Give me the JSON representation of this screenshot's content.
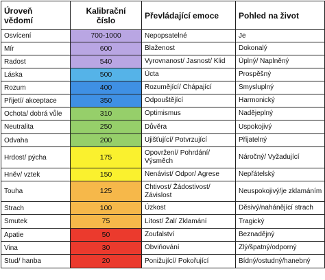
{
  "header": {
    "col1": [
      "Úroveň",
      "vědomí"
    ],
    "col2": [
      "Kalibrační",
      "číslo"
    ],
    "col3": "Převládající emoce",
    "col4": "Pohled na život"
  },
  "colors": {
    "violet": "#b9a6e3",
    "light_blue": "#55b3e8",
    "blue": "#3f90e4",
    "green": "#96cf6a",
    "yellow": "#faf12e",
    "orange": "#f6b84a",
    "red": "#eb3a2d",
    "text": "#111111",
    "border": "#222222"
  },
  "rows": [
    {
      "level": "Osvícení",
      "calib": "700-1000",
      "emotion": "Nepopsatelné",
      "view": "Je",
      "color": "#b9a6e3"
    },
    {
      "level": "Mír",
      "calib": "600",
      "emotion": "Blaženost",
      "view": "Dokonalý",
      "color": "#b9a6e3"
    },
    {
      "level": "Radost",
      "calib": "540",
      "emotion": "Vyrovnanost/ Jasnost/ Klid",
      "view": "Úplný/ Naplněný",
      "color": "#b9a6e3"
    },
    {
      "level": "Láska",
      "calib": "500",
      "emotion": "Úcta",
      "view": "Prospěšný",
      "color": "#55b3e8"
    },
    {
      "level": "Rozum",
      "calib": "400",
      "emotion": "Rozumějící/ Chápající",
      "view": "Smysluplný",
      "color": "#3f90e4"
    },
    {
      "level": "Přijetí/ akceptace",
      "calib": "350",
      "emotion": "Odpouštějící",
      "view": "Harmonický",
      "color": "#3f90e4"
    },
    {
      "level": "Ochota/ dobrá vůle",
      "calib": "310",
      "emotion": "Optimismus",
      "view": "Nadějeplný",
      "color": "#96cf6a"
    },
    {
      "level": "Neutralita",
      "calib": "250",
      "emotion": "Důvěra",
      "view": "Uspokojivý",
      "color": "#96cf6a"
    },
    {
      "level": "Odvaha",
      "calib": "200",
      "emotion": "Ujišťující/ Potvrzující",
      "view": "Přijatelný",
      "color": "#96cf6a"
    },
    {
      "level": "Hrdost/ pýcha",
      "calib": "175",
      "emotion": "Opovržení/ Pohrdání/ Výsměch",
      "view": "Náročný/ Vyžadující",
      "color": "#faf12e"
    },
    {
      "level": "Hněv/ vztek",
      "calib": "150",
      "emotion": "Nenávist/ Odpor/ Agrese",
      "view": "Nepřátelský",
      "color": "#faf12e"
    },
    {
      "level": "Touha",
      "calib": "125",
      "emotion": "Chtivost/ Žádostivost/ Závislost",
      "view": "Neuspokojivý/je zklamáním",
      "color": "#f6b84a"
    },
    {
      "level": "Strach",
      "calib": "100",
      "emotion": "Úzkost",
      "view": "Děsivý/nahánějící strach",
      "color": "#f6b84a"
    },
    {
      "level": "Smutek",
      "calib": "75",
      "emotion": "Lítost/ Žal/ Zklamání",
      "view": "Tragický",
      "color": "#f6b84a"
    },
    {
      "level": "Apatie",
      "calib": "50",
      "emotion": "Zoufalství",
      "view": "Beznadějný",
      "color": "#eb3a2d"
    },
    {
      "level": "Vina",
      "calib": "30",
      "emotion": "Obviňování",
      "view": "Zlý/špatný/odporný",
      "color": "#eb3a2d"
    },
    {
      "level": "Stud/ hanba",
      "calib": "20",
      "emotion": "Ponižující/ Pokořující",
      "view": "Bídný/ostudný/hanebný",
      "color": "#eb3a2d"
    }
  ]
}
